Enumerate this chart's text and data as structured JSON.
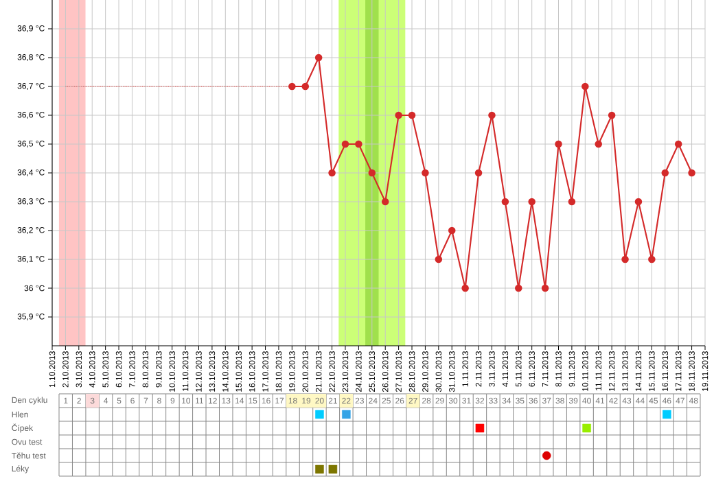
{
  "chart_data": [
    {
      "type": "line",
      "xlim": [
        "2013-10-01",
        "2013-11-19"
      ],
      "ylim": [
        35.8,
        37.0
      ],
      "xticks": [
        {
          "value": "2013-10-01",
          "label": "1.10.2013"
        },
        {
          "value": "2013-10-02",
          "label": "2.10.2013"
        },
        {
          "value": "2013-10-03",
          "label": "3.10.2013"
        },
        {
          "value": "2013-10-04",
          "label": "4.10.2013"
        },
        {
          "value": "2013-10-05",
          "label": "5.10.2013"
        },
        {
          "value": "2013-10-06",
          "label": "6.10.2013"
        },
        {
          "value": "2013-10-07",
          "label": "7.10.2013"
        },
        {
          "value": "2013-10-08",
          "label": "8.10.2013"
        },
        {
          "value": "2013-10-09",
          "label": "9.10.2013"
        },
        {
          "value": "2013-10-10",
          "label": "10.10.2013"
        },
        {
          "value": "2013-10-11",
          "label": "11.10.2013"
        },
        {
          "value": "2013-10-12",
          "label": "12.10.2013"
        },
        {
          "value": "2013-10-13",
          "label": "13.10.2013"
        },
        {
          "value": "2013-10-14",
          "label": "14.10.2013"
        },
        {
          "value": "2013-10-15",
          "label": "15.10.2013"
        },
        {
          "value": "2013-10-16",
          "label": "16.10.2013"
        },
        {
          "value": "2013-10-17",
          "label": "17.10.2013"
        },
        {
          "value": "2013-10-18",
          "label": "18.10.2013"
        },
        {
          "value": "2013-10-19",
          "label": "19.10.2013"
        },
        {
          "value": "2013-10-20",
          "label": "20.10.2013"
        },
        {
          "value": "2013-10-21",
          "label": "21.10.2013"
        },
        {
          "value": "2013-10-22",
          "label": "22.10.2013"
        },
        {
          "value": "2013-10-23",
          "label": "23.10.2013"
        },
        {
          "value": "2013-10-24",
          "label": "24.10.2013"
        },
        {
          "value": "2013-10-25",
          "label": "25.10.2013"
        },
        {
          "value": "2013-10-26",
          "label": "26.10.2013"
        },
        {
          "value": "2013-10-27",
          "label": "27.10.2013"
        },
        {
          "value": "2013-10-28",
          "label": "28.10.2013"
        },
        {
          "value": "2013-10-29",
          "label": "29.10.2013"
        },
        {
          "value": "2013-10-30",
          "label": "30.10.2013"
        },
        {
          "value": "2013-10-31",
          "label": "31.10.2013"
        },
        {
          "value": "2013-11-01",
          "label": "1.11.2013"
        },
        {
          "value": "2013-11-02",
          "label": "2.11.2013"
        },
        {
          "value": "2013-11-03",
          "label": "3.11.2013"
        },
        {
          "value": "2013-11-04",
          "label": "4.11.2013"
        },
        {
          "value": "2013-11-05",
          "label": "5.11.2013"
        },
        {
          "value": "2013-11-06",
          "label": "6.11.2013"
        },
        {
          "value": "2013-11-07",
          "label": "7.11.2013"
        },
        {
          "value": "2013-11-08",
          "label": "8.11.2013"
        },
        {
          "value": "2013-11-09",
          "label": "9.11.2013"
        },
        {
          "value": "2013-11-10",
          "label": "10.11.2013"
        },
        {
          "value": "2013-11-11",
          "label": "11.11.2013"
        },
        {
          "value": "2013-11-12",
          "label": "12.11.2013"
        },
        {
          "value": "2013-11-13",
          "label": "13.11.2013"
        },
        {
          "value": "2013-11-14",
          "label": "14.11.2013"
        },
        {
          "value": "2013-11-15",
          "label": "15.11.2013"
        },
        {
          "value": "2013-11-16",
          "label": "16.11.2013"
        },
        {
          "value": "2013-11-17",
          "label": "17.11.2013"
        },
        {
          "value": "2013-11-18",
          "label": "18.11.2013"
        },
        {
          "value": "2013-11-19",
          "label": "19.11.2013"
        }
      ],
      "yticks": [
        {
          "value": 35.9,
          "label": "35,9 °C"
        },
        {
          "value": 36,
          "label": "36 °C"
        },
        {
          "value": 36.1,
          "label": "36,1 °C"
        },
        {
          "value": 36.2,
          "label": "36,2 °C"
        },
        {
          "value": 36.3,
          "label": "36,3 °C"
        },
        {
          "value": 36.4,
          "label": "36,4 °C"
        },
        {
          "value": 36.5,
          "label": "36,5 °C"
        },
        {
          "value": 36.6,
          "label": "36,6 °C"
        },
        {
          "value": 36.7,
          "label": "36,7 °C"
        },
        {
          "value": 36.8,
          "label": "36,8 °C"
        },
        {
          "value": 36.9,
          "label": "36,9 °C"
        }
      ],
      "grid": true,
      "marker": "circle",
      "line_style": "solid",
      "bands": [
        {
          "axis": "x",
          "from": "2013-10-01T12:00",
          "to": "2013-10-03T12:00",
          "color": "#ffc4c4"
        },
        {
          "axis": "x",
          "from": "2013-10-22T12:00",
          "to": "2013-10-27T12:00",
          "color": "#ccff77"
        },
        {
          "axis": "x",
          "from": "2013-10-24T12:00",
          "to": "2013-10-25T12:00",
          "color": "#a0e04c"
        }
      ],
      "series": [
        {
          "color": "#d42a2a",
          "x": [
            "2013-10-19",
            "2013-10-20",
            "2013-10-21",
            "2013-10-22",
            "2013-10-23",
            "2013-10-24",
            "2013-10-25",
            "2013-10-26",
            "2013-10-27",
            "2013-10-28",
            "2013-10-29",
            "2013-10-30",
            "2013-10-31",
            "2013-11-01",
            "2013-11-02",
            "2013-11-03",
            "2013-11-04",
            "2013-11-05",
            "2013-11-06",
            "2013-11-07",
            "2013-11-08",
            "2013-11-09",
            "2013-11-10",
            "2013-11-11",
            "2013-11-12",
            "2013-11-13",
            "2013-11-14",
            "2013-11-15",
            "2013-11-16",
            "2013-11-17",
            "2013-11-18"
          ],
          "values": [
            36.7,
            36.7,
            36.8,
            36.4,
            36.5,
            36.5,
            36.4,
            36.3,
            36.6,
            36.6,
            36.4,
            36.1,
            36.2,
            36.0,
            36.4,
            36.6,
            36.3,
            36.0,
            36.3,
            36.0,
            36.5,
            36.3,
            36.7,
            36.5,
            36.6,
            36.1,
            36.3,
            36.1,
            36.4,
            36.5,
            36.4
          ]
        },
        {
          "color": "#e04040",
          "x": [
            "2013-10-02",
            "2013-10-19"
          ],
          "values": [
            36.7,
            36.7
          ],
          "line_style": "dotted",
          "marker": "none"
        }
      ]
    },
    {
      "type": "scatter",
      "orientation": "horizontal",
      "xlabel": "Den cyklu",
      "xlim": [
        0.5,
        48.5
      ],
      "xticks": [
        1,
        2,
        3,
        4,
        5,
        6,
        7,
        8,
        9,
        10,
        11,
        12,
        13,
        14,
        15,
        16,
        17,
        18,
        19,
        20,
        21,
        22,
        23,
        24,
        25,
        26,
        27,
        28,
        29,
        30,
        31,
        32,
        33,
        34,
        35,
        36,
        37,
        38,
        39,
        40,
        41,
        42,
        43,
        44,
        45,
        46,
        47,
        48
      ],
      "categories": [
        "Hlen",
        "Čípek",
        "Ovu test",
        "Těhu test",
        "Léky"
      ],
      "grid": true,
      "marker": "square",
      "bands": [
        {
          "axis": "x",
          "from": 2.5,
          "to": 3.5,
          "color": "#fcdada"
        },
        {
          "axis": "x",
          "from": 17.5,
          "to": 20.5,
          "color": "#fff8c4"
        },
        {
          "axis": "x",
          "from": 21.5,
          "to": 22.5,
          "color": "#fff8c4"
        },
        {
          "axis": "x",
          "from": 26.5,
          "to": 27.5,
          "color": "#fff8c4"
        }
      ],
      "series": [
        {
          "values": [
            20,
            32,
            null,
            null,
            20
          ],
          "colors": [
            "#00ccff",
            "#ff0000",
            null,
            null,
            "#7d7600"
          ]
        },
        {
          "values": [
            22,
            40,
            null,
            null,
            21
          ],
          "colors": [
            "#33a3e6",
            "#99ee00",
            null,
            null,
            "#7d7600"
          ]
        },
        {
          "values": [
            46,
            null,
            null,
            null,
            null
          ],
          "colors": [
            "#00ccff",
            null,
            null,
            null,
            null
          ]
        },
        {
          "values": [
            null,
            null,
            null,
            37,
            null
          ],
          "colors": [
            null,
            null,
            null,
            "#dd0000",
            null
          ],
          "marker": "circle"
        }
      ]
    }
  ]
}
